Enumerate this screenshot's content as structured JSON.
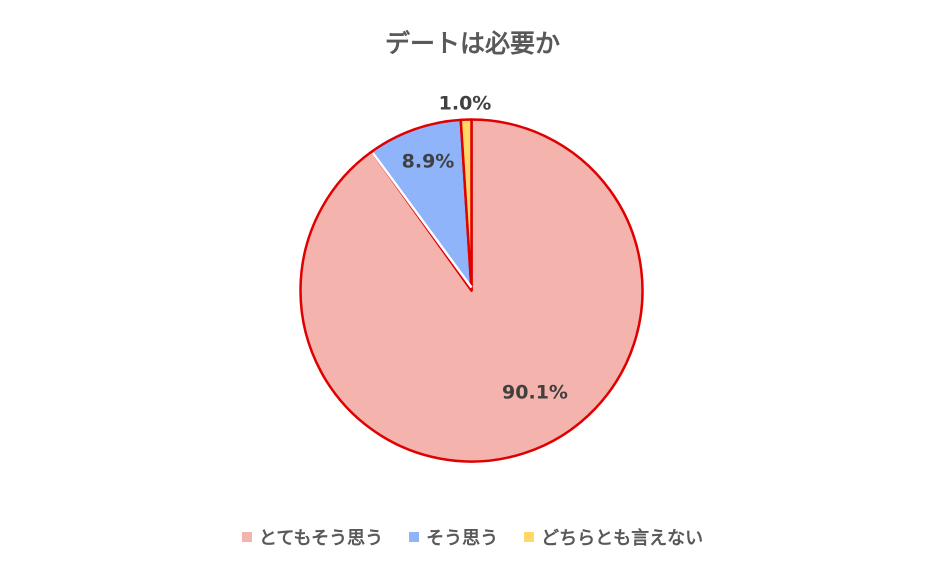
{
  "chart_data": {
    "type": "pie",
    "title": "デートは必要か",
    "start_angle": "top",
    "direction": "clockwise",
    "slices": [
      {
        "label": "とてもそう思う",
        "value": 90.1,
        "data_label": "90.1%",
        "color": "#F5B3AE"
      },
      {
        "label": "そう思う",
        "value": 8.9,
        "data_label": "8.9%",
        "color": "#8FB4F9"
      },
      {
        "label": "どちらとも言えない",
        "value": 1.0,
        "data_label": "1.0%",
        "color": "#FFD966"
      }
    ],
    "outline_color": "#E00000",
    "legend_position": "bottom"
  }
}
